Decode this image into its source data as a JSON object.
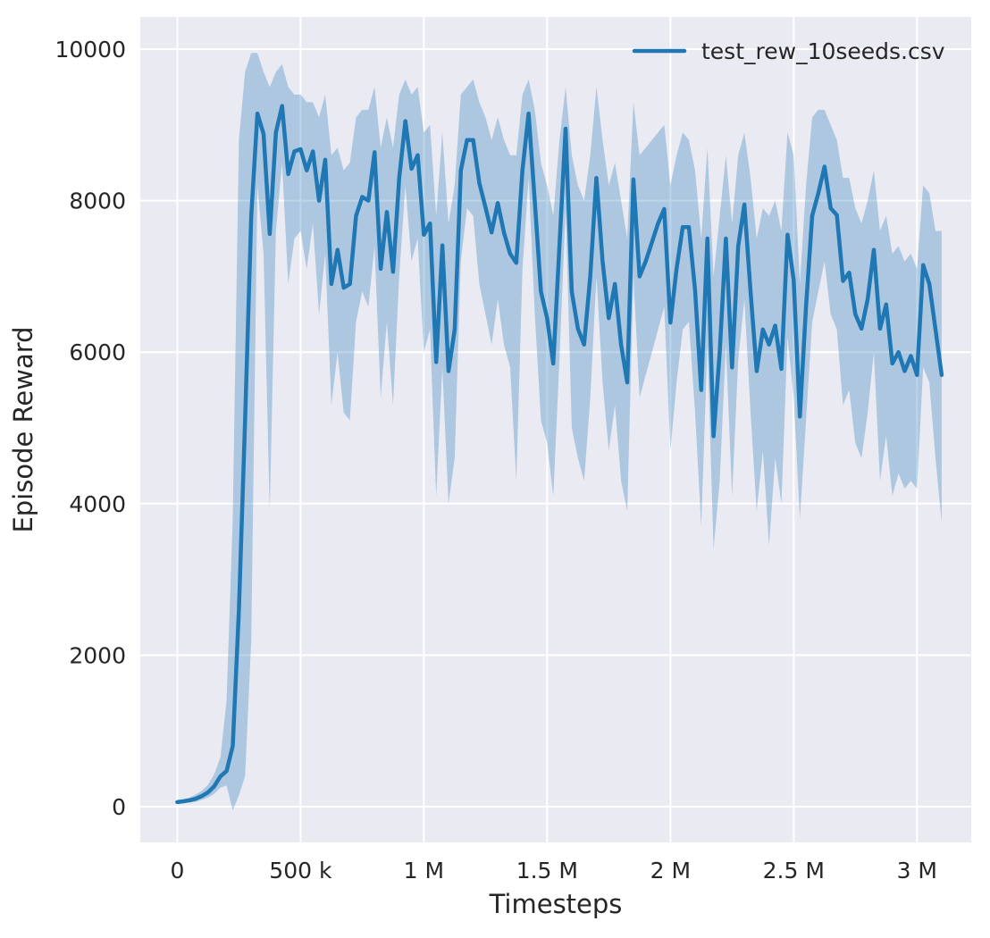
{
  "chart_data": {
    "type": "line",
    "title": "",
    "xlabel": "Timesteps",
    "ylabel": "Episode Reward",
    "plot_bg_color": "#eaeaf2",
    "grid": true,
    "grid_color": "#ffffff",
    "legend_position": "upper right",
    "legend": [
      {
        "label": "test_rew_10seeds.csv",
        "color": "#1f77b4"
      }
    ],
    "xlim": [
      -150000,
      3220000
    ],
    "ylim": [
      -472,
      10425
    ],
    "xticks": [
      {
        "value": 0,
        "label": "0"
      },
      {
        "value": 500000,
        "label": "500 k"
      },
      {
        "value": 1000000,
        "label": "1 M"
      },
      {
        "value": 1500000,
        "label": "1.5 M"
      },
      {
        "value": 2000000,
        "label": "2 M"
      },
      {
        "value": 2500000,
        "label": "2.5 M"
      },
      {
        "value": 3000000,
        "label": "3 M"
      }
    ],
    "yticks": [
      {
        "value": 0,
        "label": "0"
      },
      {
        "value": 2000,
        "label": "2000"
      },
      {
        "value": 4000,
        "label": "4000"
      },
      {
        "value": 6000,
        "label": "6000"
      },
      {
        "value": 8000,
        "label": "8000"
      },
      {
        "value": 10000,
        "label": "10000"
      }
    ],
    "series": [
      {
        "name": "test_rew_10seeds.csv",
        "color": "#1f77b4",
        "band_opacity": 0.3,
        "x": [
          0,
          25000,
          50000,
          75000,
          100000,
          125000,
          150000,
          175000,
          200000,
          225000,
          250000,
          275000,
          300000,
          325000,
          350000,
          375000,
          400000,
          425000,
          450000,
          475000,
          500000,
          525000,
          550000,
          575000,
          600000,
          625000,
          650000,
          675000,
          700000,
          725000,
          750000,
          775000,
          800000,
          825000,
          850000,
          875000,
          900000,
          925000,
          950000,
          975000,
          1000000,
          1025000,
          1050000,
          1075000,
          1100000,
          1125000,
          1150000,
          1175000,
          1200000,
          1225000,
          1250000,
          1275000,
          1300000,
          1325000,
          1350000,
          1375000,
          1400000,
          1425000,
          1450000,
          1475000,
          1500000,
          1525000,
          1550000,
          1575000,
          1600000,
          1625000,
          1650000,
          1675000,
          1700000,
          1725000,
          1750000,
          1775000,
          1800000,
          1825000,
          1850000,
          1875000,
          1900000,
          1925000,
          1950000,
          1975000,
          2000000,
          2025000,
          2050000,
          2075000,
          2100000,
          2125000,
          2150000,
          2175000,
          2200000,
          2225000,
          2250000,
          2275000,
          2300000,
          2325000,
          2350000,
          2375000,
          2400000,
          2425000,
          2450000,
          2475000,
          2500000,
          2525000,
          2550000,
          2575000,
          2600000,
          2625000,
          2650000,
          2675000,
          2700000,
          2725000,
          2750000,
          2775000,
          2800000,
          2825000,
          2850000,
          2875000,
          2900000,
          2925000,
          2950000,
          2975000,
          3000000,
          3025000,
          3050000,
          3075000,
          3100000
        ],
        "mean": [
          60,
          70,
          85,
          105,
          140,
          190,
          270,
          400,
          470,
          800,
          2600,
          5100,
          7800,
          9150,
          8880,
          7560,
          8900,
          9250,
          8350,
          8650,
          8680,
          8400,
          8650,
          8000,
          8540,
          6900,
          7350,
          6850,
          6900,
          7800,
          8050,
          8000,
          8640,
          7100,
          7850,
          7060,
          8300,
          9050,
          8420,
          8600,
          7550,
          7700,
          5870,
          7410,
          5750,
          6300,
          8400,
          8800,
          8800,
          8230,
          7910,
          7580,
          7970,
          7580,
          7300,
          7180,
          8400,
          9150,
          8000,
          6800,
          6450,
          5850,
          7400,
          8950,
          6800,
          6310,
          6100,
          7000,
          8300,
          7200,
          6450,
          6900,
          6100,
          5600,
          8280,
          7000,
          7200,
          7450,
          7700,
          7890,
          6390,
          7100,
          7650,
          7650,
          6820,
          5500,
          7500,
          4890,
          6000,
          7500,
          5800,
          7400,
          7950,
          6800,
          5750,
          6300,
          6100,
          6350,
          5780,
          7550,
          6950,
          5150,
          6600,
          7800,
          8100,
          8450,
          7900,
          7810,
          6940,
          7050,
          6500,
          6310,
          6700,
          7350,
          6310,
          6630,
          5850,
          6000,
          5750,
          5950,
          5700,
          7150,
          6900,
          6300,
          5700
        ],
        "band_low": [
          40,
          45,
          55,
          65,
          90,
          120,
          170,
          250,
          280,
          -50,
          150,
          400,
          2200,
          8200,
          7300,
          3900,
          7600,
          8500,
          6900,
          7500,
          7600,
          7100,
          7700,
          6500,
          7300,
          5300,
          6000,
          5200,
          5100,
          6400,
          6800,
          6600,
          7400,
          5400,
          6400,
          5300,
          7000,
          8200,
          7200,
          7500,
          6000,
          6300,
          4100,
          5800,
          4000,
          4600,
          7200,
          7900,
          7800,
          6900,
          6500,
          6100,
          6700,
          6100,
          5800,
          4300,
          7100,
          8300,
          6500,
          5100,
          4800,
          4100,
          5900,
          7900,
          5000,
          4600,
          4300,
          5400,
          7000,
          5600,
          4700,
          5300,
          4300,
          3900,
          7000,
          5400,
          5700,
          6000,
          6300,
          6600,
          4700,
          5600,
          6300,
          6400,
          5200,
          3700,
          6100,
          3400,
          4300,
          6100,
          4100,
          5900,
          6700,
          5200,
          3900,
          4700,
          3450,
          4600,
          4000,
          6200,
          5400,
          3800,
          5100,
          6400,
          6800,
          7200,
          6500,
          6300,
          5300,
          5500,
          4800,
          4600,
          5200,
          6000,
          4300,
          4900,
          4100,
          4400,
          4200,
          4300,
          4200,
          5800,
          5600,
          4600,
          3750
        ],
        "band_high": [
          85,
          100,
          120,
          160,
          210,
          290,
          430,
          650,
          1400,
          3800,
          8800,
          9700,
          9950,
          9950,
          9700,
          9500,
          9700,
          9800,
          9500,
          9400,
          9400,
          9300,
          9300,
          9100,
          9400,
          8600,
          8700,
          8400,
          8500,
          9100,
          9200,
          9200,
          9500,
          8700,
          9100,
          8700,
          9400,
          9600,
          9400,
          9500,
          8900,
          9000,
          7800,
          8900,
          7700,
          8200,
          9400,
          9500,
          9600,
          9300,
          9100,
          8800,
          9100,
          8800,
          8600,
          8600,
          9400,
          9600,
          9200,
          8500,
          8200,
          7800,
          8800,
          9500,
          8600,
          8200,
          8000,
          8600,
          9500,
          8800,
          8200,
          8500,
          8000,
          7500,
          9300,
          8600,
          8700,
          8800,
          8900,
          9000,
          8200,
          8600,
          8900,
          8800,
          8400,
          7500,
          8700,
          7000,
          7800,
          8600,
          7700,
          8600,
          8900,
          8300,
          7500,
          7900,
          7800,
          8000,
          7600,
          8900,
          8600,
          6900,
          8200,
          9100,
          9200,
          9200,
          9000,
          8800,
          8300,
          8300,
          7900,
          7700,
          8000,
          8400,
          7600,
          7800,
          7300,
          7400,
          7200,
          7300,
          7100,
          8200,
          8100,
          7600,
          7600
        ]
      }
    ]
  }
}
